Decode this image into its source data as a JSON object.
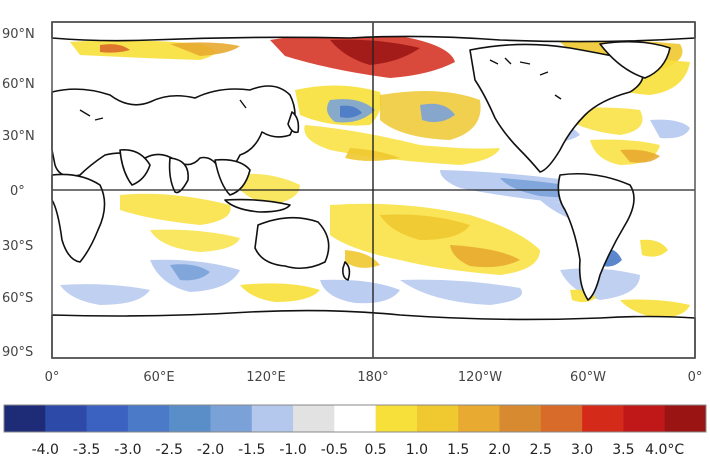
{
  "map": {
    "lat_labels": [
      "90°N",
      "60°N",
      "30°N",
      "0°",
      "30°S",
      "60°S",
      "90°S"
    ],
    "lon_labels": [
      "0°",
      "60°E",
      "120°E",
      "180°",
      "120°W",
      "60°W",
      "0°"
    ]
  },
  "colorbar": {
    "labels": [
      "-4.0",
      "-3.5",
      "-3.0",
      "-2.5",
      "-2.0",
      "-1.5",
      "-1.0",
      "-0.5",
      "0.5",
      "1.0",
      "1.5",
      "2.0",
      "2.5",
      "3.0",
      "3.5",
      "4.0°C"
    ],
    "colors": [
      "#1e2c78",
      "#2d4aa8",
      "#3b62c0",
      "#4a7ac8",
      "#5a8ec8",
      "#7aa2d8",
      "#b4c8ee",
      "#e2e2e2",
      "#ffffff",
      "#f8e03a",
      "#f0c830",
      "#e8aa30",
      "#d88a30",
      "#d86a2a",
      "#d42a1a",
      "#c01818",
      "#9a1414"
    ]
  },
  "colors": {
    "land": "#ffffff",
    "ocean_neutral": "#ffffff",
    "coastline": "#111111",
    "frame": "#555555"
  }
}
